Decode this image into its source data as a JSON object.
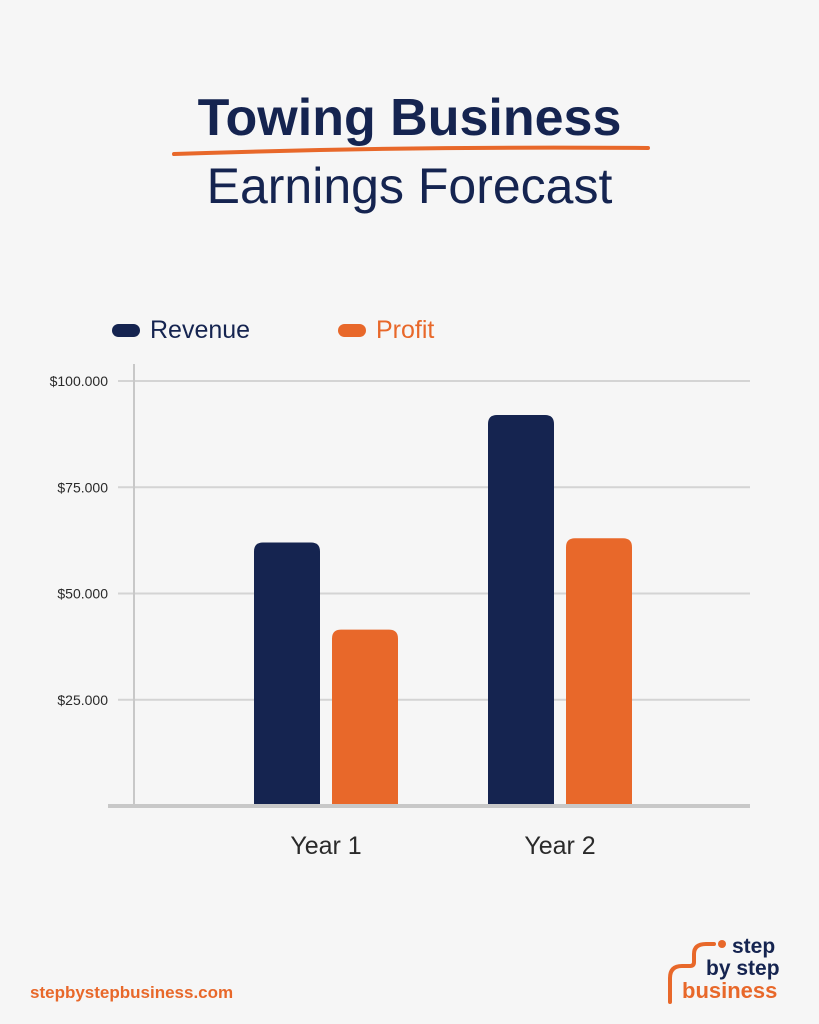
{
  "header": {
    "title_line1": "Towing Business",
    "title_line2": "Earnings Forecast"
  },
  "colors": {
    "navy": "#152450",
    "orange": "#e8682a",
    "grid": "#d4d4d4",
    "axis": "#c8c8c8"
  },
  "chart_data": {
    "type": "bar",
    "title": "Towing Business Earnings Forecast",
    "xlabel": "",
    "ylabel": "",
    "categories": [
      "Year 1",
      "Year 2"
    ],
    "series": [
      {
        "name": "Revenue",
        "color": "#152450",
        "values": [
          62000,
          92000
        ]
      },
      {
        "name": "Profit",
        "color": "#e8682a",
        "values": [
          41500,
          63000
        ]
      }
    ],
    "yticks": [
      25000,
      50000,
      75000,
      100000
    ],
    "ytick_labels": [
      "$25.000",
      "$50.000",
      "$75.000",
      "$100.000"
    ],
    "ylim": [
      0,
      100000
    ],
    "grid": true,
    "legend_position": "top-left"
  },
  "footer": {
    "url": "stepbystepbusiness.com",
    "logo_line1": "step",
    "logo_line2": "by step",
    "logo_line3": "business"
  }
}
